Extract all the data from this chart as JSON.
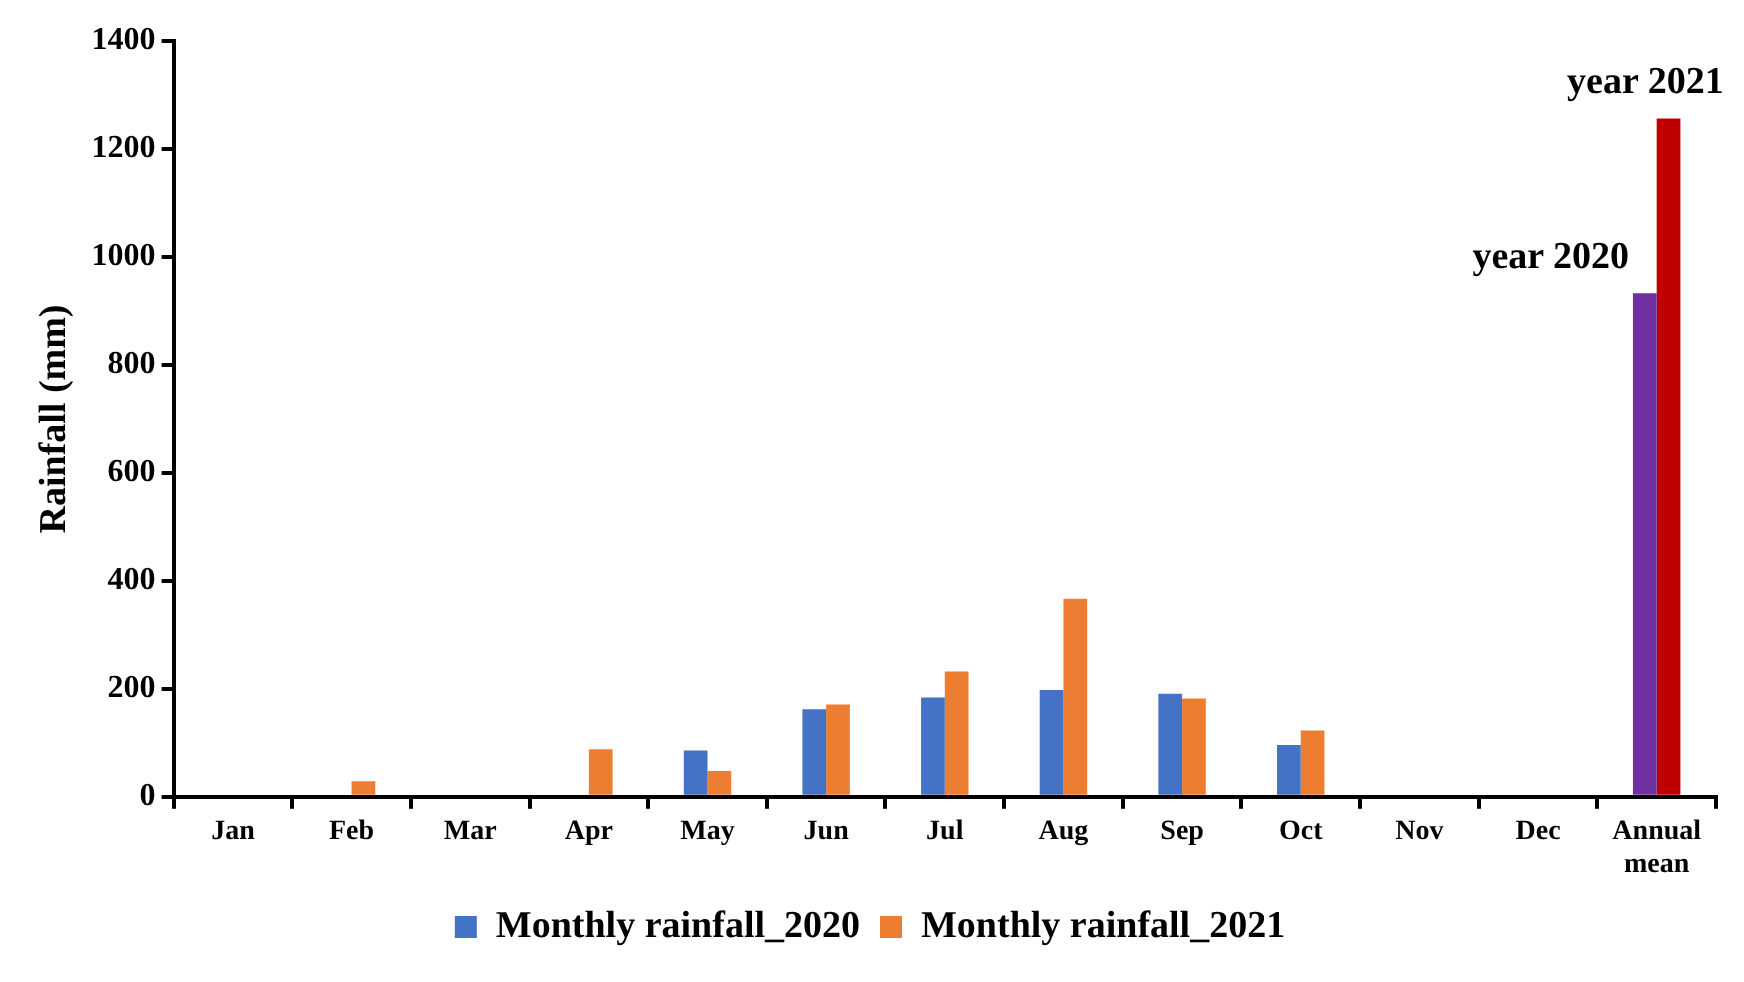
{
  "chart_data": {
    "type": "bar",
    "ylabel": "Rainfall (mm)",
    "categories": [
      "Jan",
      "Feb",
      "Mar",
      "Apr",
      "May",
      "Jun",
      "Jul",
      "Aug",
      "Sep",
      "Oct",
      "Nov",
      "Dec",
      "Annual mean"
    ],
    "series": [
      {
        "name": "Monthly rainfall_2020",
        "color": "#4472c4",
        "colors": [
          "#4472c4",
          "#4472c4",
          "#4472c4",
          "#4472c4",
          "#4472c4",
          "#4472c4",
          "#4472c4",
          "#4472c4",
          "#4472c4",
          "#4472c4",
          "#4472c4",
          "#4472c4",
          "#7030a0"
        ],
        "values": [
          null,
          null,
          null,
          null,
          86,
          162,
          184,
          198,
          191,
          96,
          null,
          null,
          933
        ]
      },
      {
        "name": "Monthly rainfall_2021",
        "color": "#ed7d31",
        "colors": [
          "#ed7d31",
          "#ed7d31",
          "#ed7d31",
          "#ed7d31",
          "#ed7d31",
          "#ed7d31",
          "#ed7d31",
          "#ed7d31",
          "#ed7d31",
          "#ed7d31",
          "#ed7d31",
          "#ed7d31",
          "#c00000"
        ],
        "values": [
          null,
          29,
          null,
          88,
          48,
          171,
          232,
          367,
          182,
          123,
          null,
          null,
          1257
        ]
      }
    ],
    "ylim": [
      0,
      1400
    ],
    "yticks": [
      0,
      200,
      400,
      600,
      800,
      1000,
      1200,
      1400
    ],
    "annotations": [
      {
        "text": "year 2020",
        "x": "Annual mean",
        "y": 933
      },
      {
        "text": "year 2021",
        "x": "Annual mean",
        "y": 1257
      }
    ],
    "grid": false,
    "legend": "bottom"
  }
}
